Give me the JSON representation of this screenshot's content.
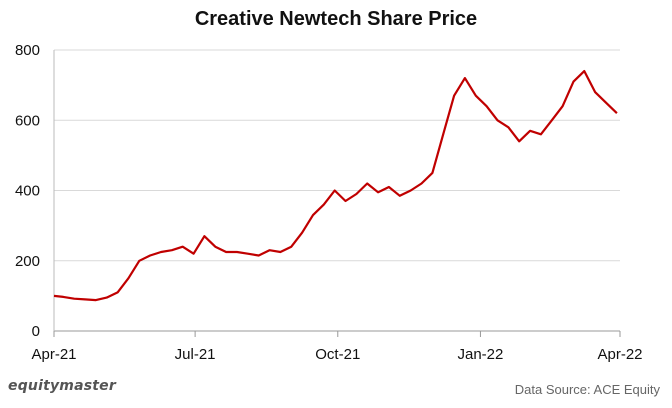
{
  "chart_data": {
    "type": "line",
    "title": "Creative Newtech Share Price",
    "xlabel": "",
    "ylabel": "",
    "ylim": [
      0,
      800
    ],
    "yticks": [
      0,
      200,
      400,
      600,
      800
    ],
    "ytick_labels": [
      "0",
      "200",
      "400",
      "600",
      "800"
    ],
    "xticks": [
      "Apr-21",
      "Jul-21",
      "Oct-21",
      "Jan-22",
      "Apr-22"
    ],
    "grid": true,
    "series": [
      {
        "color": "#C00000",
        "x": [
          "2021-04-01",
          "2021-04-07",
          "2021-04-14",
          "2021-04-21",
          "2021-04-28",
          "2021-05-05",
          "2021-05-12",
          "2021-05-19",
          "2021-05-26",
          "2021-06-02",
          "2021-06-09",
          "2021-06-16",
          "2021-06-23",
          "2021-06-30",
          "2021-07-07",
          "2021-07-14",
          "2021-07-21",
          "2021-07-28",
          "2021-08-04",
          "2021-08-11",
          "2021-08-18",
          "2021-08-25",
          "2021-09-01",
          "2021-09-08",
          "2021-09-15",
          "2021-09-22",
          "2021-09-29",
          "2021-10-06",
          "2021-10-13",
          "2021-10-20",
          "2021-10-27",
          "2021-11-03",
          "2021-11-10",
          "2021-11-17",
          "2021-11-24",
          "2021-12-01",
          "2021-12-08",
          "2021-12-15",
          "2021-12-22",
          "2021-12-29",
          "2022-01-05",
          "2022-01-12",
          "2022-01-19",
          "2022-01-26",
          "2022-02-02",
          "2022-02-09",
          "2022-02-16",
          "2022-02-23",
          "2022-03-02",
          "2022-03-09",
          "2022-03-16",
          "2022-03-23",
          "2022-03-30"
        ],
        "values": [
          100,
          97,
          92,
          90,
          88,
          95,
          110,
          150,
          200,
          215,
          225,
          230,
          240,
          220,
          270,
          240,
          225,
          225,
          220,
          215,
          230,
          225,
          240,
          280,
          330,
          360,
          400,
          370,
          390,
          420,
          395,
          410,
          385,
          400,
          420,
          450,
          560,
          670,
          720,
          670,
          640,
          600,
          580,
          540,
          570,
          560,
          600,
          640,
          710,
          740,
          680,
          650,
          620
        ]
      }
    ]
  },
  "footer": {
    "brand": "equitymaster",
    "source": "Data Source: ACE Equity"
  }
}
